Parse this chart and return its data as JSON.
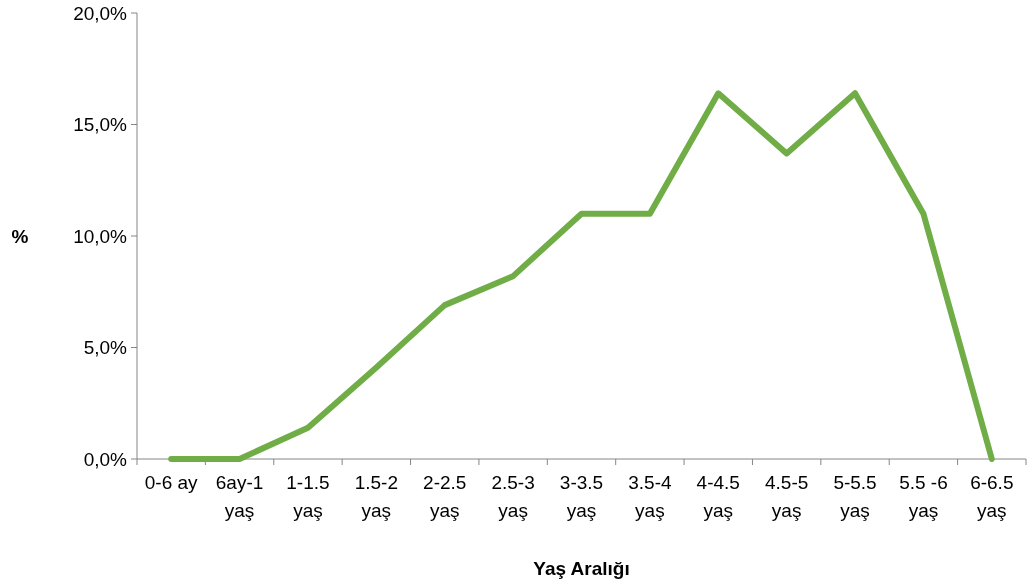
{
  "chart_data": {
    "type": "line",
    "xlabel": "Yaş Aralığı",
    "ylabel": "%",
    "categories": [
      "0-6 ay",
      "6ay-1\nyaş",
      "1-1.5\nyaş",
      "1.5-2\nyaş",
      "2-2.5\nyaş",
      "2.5-3\nyaş",
      "3-3.5\nyaş",
      "3.5-4\nyaş",
      "4-4.5\nyaş",
      "4.5-5\nyaş",
      "5-5.5\nyaş",
      "5.5 -6\nyaş",
      "6-6.5\nyaş"
    ],
    "series": [
      {
        "color": "#70ad47",
        "values": [
          0,
          0,
          1.4,
          4.1,
          6.9,
          8.2,
          11.0,
          11.0,
          16.4,
          13.7,
          16.4,
          11.0,
          0
        ]
      }
    ],
    "ylim": [
      0,
      20
    ],
    "yticks": [
      {
        "value": 0,
        "label": "0,0%"
      },
      {
        "value": 5,
        "label": "5,0%"
      },
      {
        "value": 10,
        "label": "10,0%"
      },
      {
        "value": 15,
        "label": "15,0%"
      },
      {
        "value": 20,
        "label": "20,0%"
      }
    ],
    "grid": false,
    "marker": "none",
    "line_style": "solid"
  }
}
